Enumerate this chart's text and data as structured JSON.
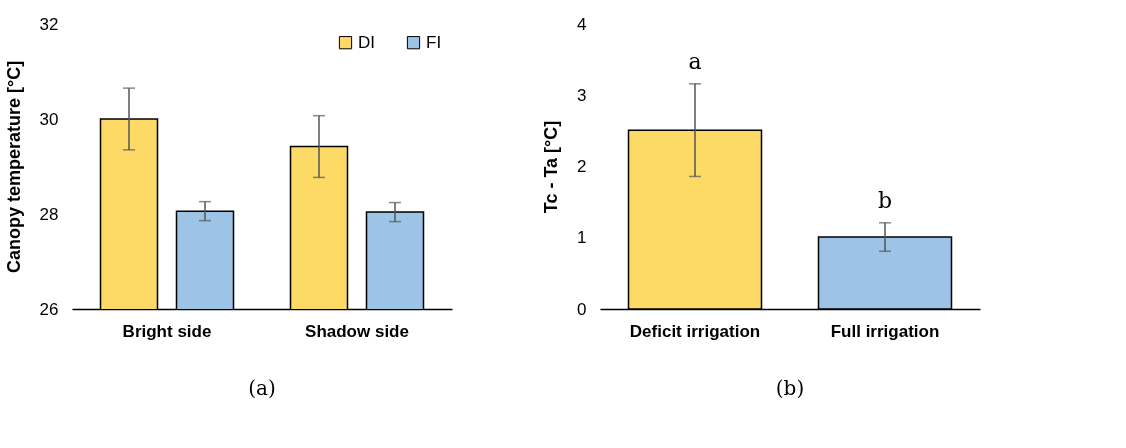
{
  "chart_data": [
    {
      "type": "bar",
      "title": "(a)",
      "ylabel": "Canopy temperature [°C]",
      "categories": [
        "Bright side",
        "Shadow side"
      ],
      "series": [
        {
          "name": "DI",
          "color": "#fdd966",
          "values": [
            30.0,
            29.42
          ],
          "errors": [
            0.65,
            0.65
          ]
        },
        {
          "name": "FI",
          "color": "#9dc3e6",
          "values": [
            28.06,
            28.04
          ],
          "errors": [
            0.2,
            0.2
          ]
        }
      ],
      "ylim": [
        26,
        32
      ],
      "yticks": [
        26,
        28,
        30,
        32
      ],
      "legend": "top right",
      "grid": false
    },
    {
      "type": "bar",
      "title": "(b)",
      "ylabel": "Tc - Ta  [°C]",
      "categories": [
        "Deficit irrigation",
        "Full irrigation"
      ],
      "values": [
        2.51,
        1.01
      ],
      "errors": [
        0.65,
        0.2
      ],
      "colors": [
        "#fdd966",
        "#9dc3e6"
      ],
      "ylim": [
        0,
        4
      ],
      "yticks": [
        0,
        1,
        2,
        3,
        4
      ],
      "grid": false,
      "annotations": [
        "a",
        "b"
      ]
    }
  ]
}
